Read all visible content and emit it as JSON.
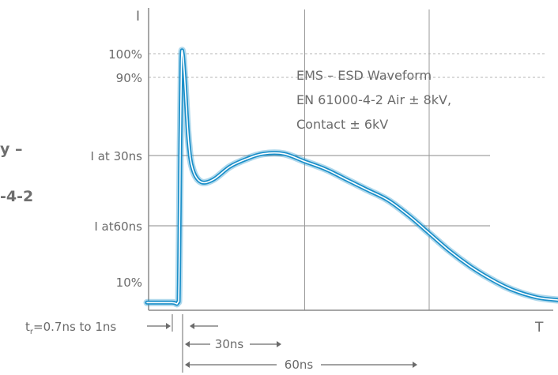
{
  "chart_data": {
    "type": "line",
    "title_lines": [
      "EMS – ESD Waveform",
      "EN 61000-4-2 Air ± 8kV,",
      "Contact ± 6kV"
    ],
    "ylabel": "I",
    "xlabel": "T",
    "x_unit": "ns",
    "y_unit": "% of peak current",
    "ylim": [
      0,
      110
    ],
    "y_ticks": [
      {
        "label": "100%",
        "value": 100,
        "style": "dashed"
      },
      {
        "label": "90%",
        "value": 90,
        "style": "dashed"
      },
      {
        "label": "I at 30ns",
        "value": 55,
        "style": "solid"
      },
      {
        "label": "I at60ns",
        "value": 30,
        "style": "solid"
      },
      {
        "label": "10%",
        "value": 10,
        "style": "none"
      }
    ],
    "series": [
      {
        "color": "#1a8fc9",
        "x": [
          -8,
          -2,
          -0.6,
          -0.3,
          0,
          0.3,
          0.6,
          1,
          2,
          3,
          5,
          8,
          12,
          16,
          20,
          25,
          30,
          35,
          40,
          45,
          50,
          55,
          60,
          65,
          70,
          75,
          80,
          86,
          91
        ],
        "y": [
          3,
          3,
          3,
          10,
          60,
          97,
          100,
          92,
          66,
          55,
          50,
          51,
          56,
          59,
          61,
          61,
          58,
          55,
          51,
          47,
          43,
          37,
          30,
          23,
          17,
          12,
          8,
          5,
          4
        ]
      }
    ],
    "annotations": [
      {
        "label_main": "t",
        "label_sub": "r",
        "label_rest": "=0.7ns  to 1ns"
      },
      {
        "label": "30ns",
        "from": 0,
        "to": 30
      },
      {
        "label": "60ns",
        "from": 0,
        "to": 60
      }
    ]
  },
  "side_text": [
    "y –",
    "-4-2"
  ]
}
